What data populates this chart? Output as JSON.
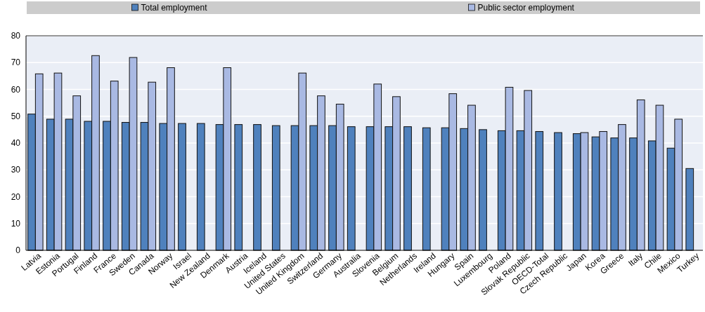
{
  "chart_data": {
    "type": "bar",
    "categories": [
      "Latvia",
      "Estonia",
      "Portugal",
      "Finland",
      "France",
      "Sweden",
      "Canada",
      "Norway",
      "Israel",
      "New Zealand",
      "Denmark",
      "Austria",
      "Iceland",
      "United States",
      "United Kingdom",
      "Switzerland",
      "Germany",
      "Australia",
      "Slovenia",
      "Belgium",
      "Netherlands",
      "Ireland",
      "Hungary",
      "Spain",
      "Luxembourg",
      "Poland",
      "Slovak Republic",
      "OECD-Total",
      "Czech Republic",
      "Japan",
      "Korea",
      "Greece",
      "Italy",
      "Chile",
      "Mexico",
      "Turkey"
    ],
    "series": [
      {
        "name": "Total employment",
        "color": "#4f81bd",
        "values": [
          50.8,
          48.9,
          48.9,
          48.1,
          48.1,
          47.7,
          47.7,
          47.3,
          47.3,
          47.3,
          46.9,
          46.9,
          46.9,
          46.5,
          46.5,
          46.5,
          46.5,
          46.1,
          46.1,
          46.1,
          46.1,
          45.7,
          45.7,
          45.4,
          45.0,
          44.6,
          44.6,
          44.3,
          43.9,
          43.5,
          42.3,
          41.9,
          41.9,
          40.8,
          38.1,
          30.5
        ]
      },
      {
        "name": "Public sector employment",
        "color": "#a9b9e3",
        "values": [
          65.8,
          66.1,
          57.6,
          72.6,
          63.1,
          71.9,
          62.7,
          68.1,
          null,
          null,
          68.1,
          null,
          null,
          null,
          66.1,
          57.6,
          54.5,
          null,
          62.0,
          57.3,
          null,
          null,
          58.4,
          54.1,
          null,
          60.8,
          59.6,
          null,
          null,
          43.9,
          44.3,
          46.9,
          56.1,
          54.1,
          48.9,
          null
        ]
      }
    ],
    "ylim": [
      0,
      80
    ],
    "yticks": [
      0,
      10,
      20,
      30,
      40,
      50,
      60,
      70,
      80
    ],
    "grid": "y",
    "legend": "top"
  }
}
